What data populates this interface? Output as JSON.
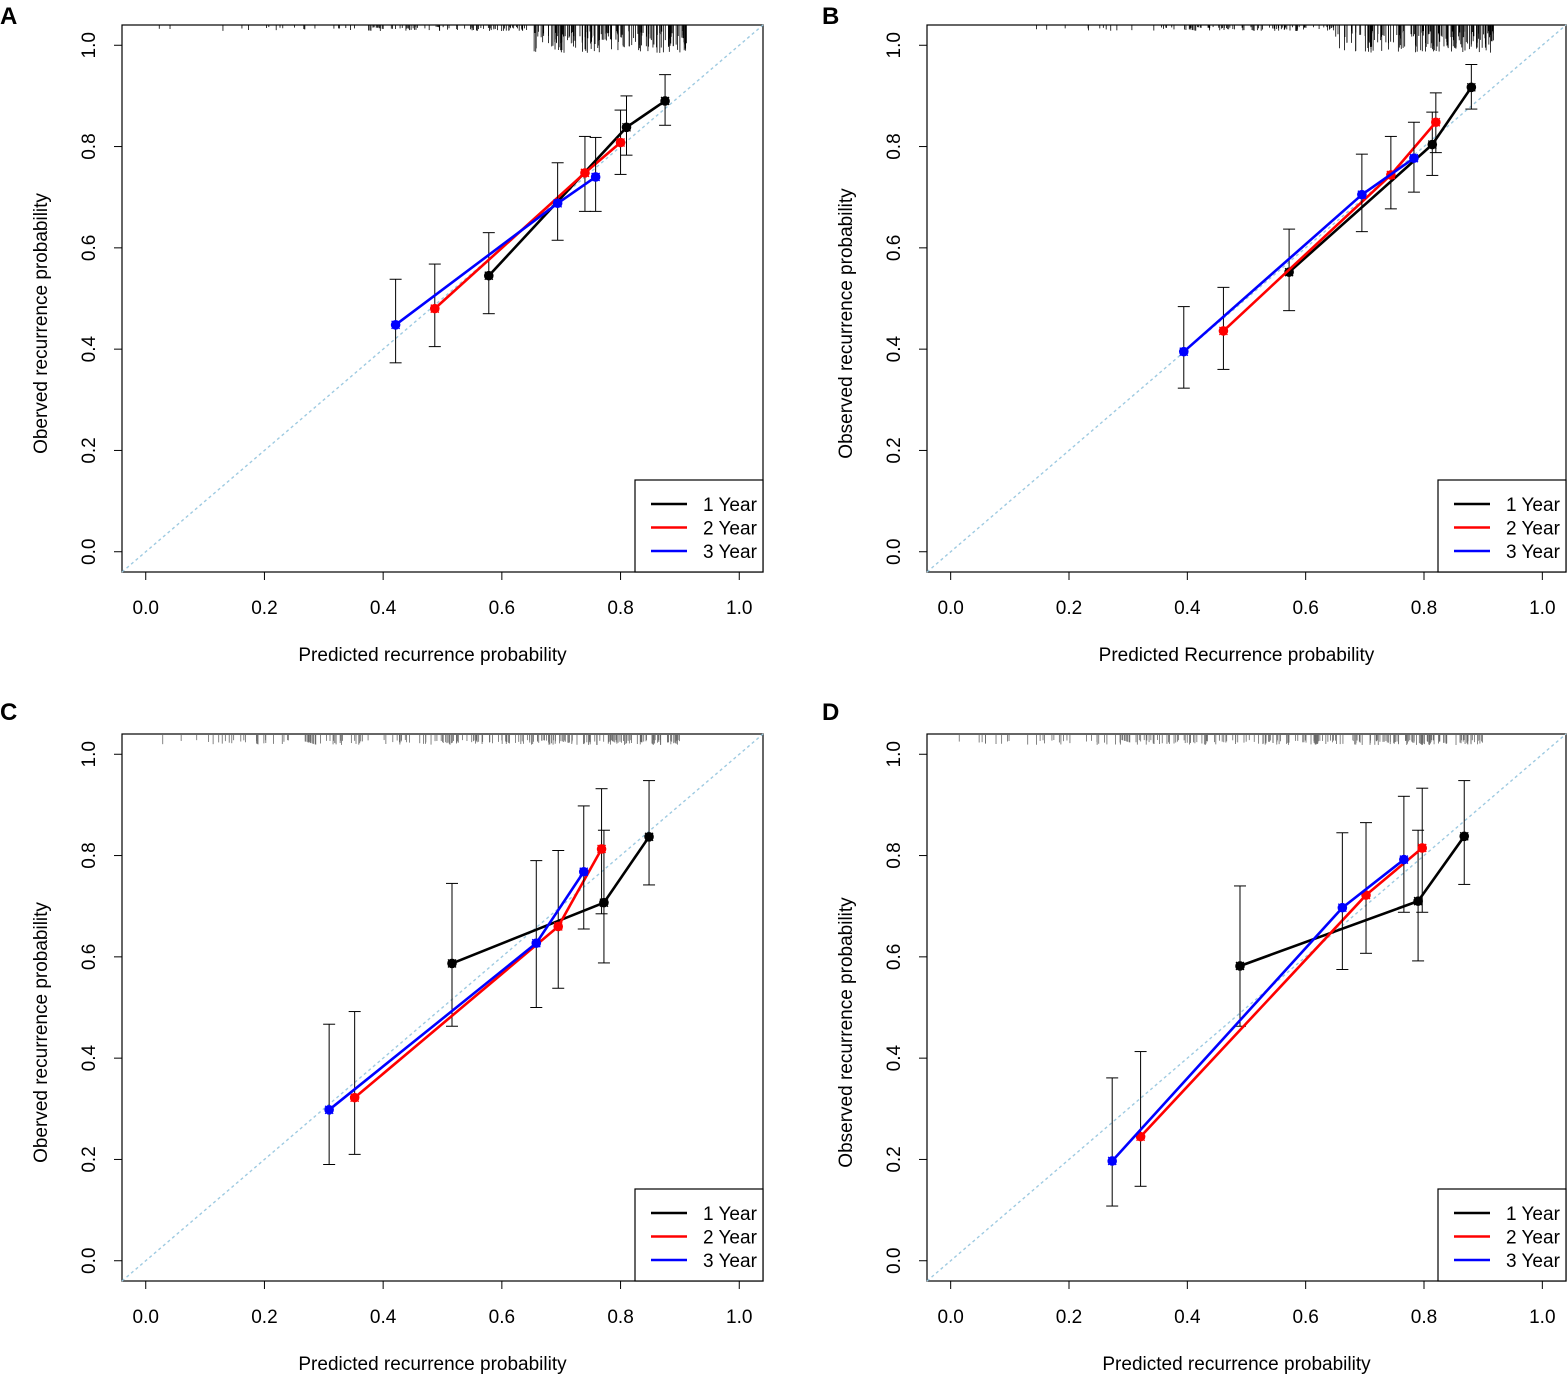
{
  "colors": {
    "1 Year": "#000000",
    "2 Year": "#ff0000",
    "3 Year": "#0000ff",
    "ideal": "#9ecae1",
    "frame": "#000000"
  },
  "chart_data": [
    {
      "panel_label": "A",
      "type": "line",
      "title": "",
      "xlabel": "Predicted recurrence probability",
      "ylabel": "Oberved recurrence probability",
      "xlim": [
        -0.04,
        1.04
      ],
      "ylim": [
        -0.04,
        1.04
      ],
      "xticks": [
        "0.0",
        "0.2",
        "0.4",
        "0.6",
        "0.8",
        "1.0"
      ],
      "yticks": [
        "0.0",
        "0.2",
        "0.4",
        "0.6",
        "0.8",
        "1.0"
      ],
      "ideal_line": [
        [
          0,
          0
        ],
        [
          1,
          1
        ]
      ],
      "legend": {
        "position": "bottom-right",
        "entries": [
          "1 Year",
          "2 Year",
          "3 Year"
        ]
      },
      "rug": "dense",
      "series": [
        {
          "name": "1 Year",
          "points": [
            {
              "x": 0.578,
              "y": 0.545,
              "lo": 0.47,
              "hi": 0.63
            },
            {
              "x": 0.81,
              "y": 0.838,
              "lo": 0.783,
              "hi": 0.9
            },
            {
              "x": 0.875,
              "y": 0.89,
              "lo": 0.842,
              "hi": 0.942
            }
          ]
        },
        {
          "name": "2 Year",
          "points": [
            {
              "x": 0.487,
              "y": 0.48,
              "lo": 0.405,
              "hi": 0.568
            },
            {
              "x": 0.74,
              "y": 0.748,
              "lo": 0.672,
              "hi": 0.82
            },
            {
              "x": 0.8,
              "y": 0.808,
              "lo": 0.745,
              "hi": 0.872
            }
          ]
        },
        {
          "name": "3 Year",
          "points": [
            {
              "x": 0.421,
              "y": 0.448,
              "lo": 0.373,
              "hi": 0.538
            },
            {
              "x": 0.694,
              "y": 0.688,
              "lo": 0.615,
              "hi": 0.768
            },
            {
              "x": 0.758,
              "y": 0.74,
              "lo": 0.672,
              "hi": 0.818
            }
          ]
        }
      ]
    },
    {
      "panel_label": "B",
      "type": "line",
      "title": "",
      "xlabel": "Predicted Recurrence probability",
      "ylabel": "Observed recurrence probability",
      "xlim": [
        -0.04,
        1.04
      ],
      "ylim": [
        -0.04,
        1.04
      ],
      "xticks": [
        "0.0",
        "0.2",
        "0.4",
        "0.6",
        "0.8",
        "1.0"
      ],
      "yticks": [
        "0.0",
        "0.2",
        "0.4",
        "0.6",
        "0.8",
        "1.0"
      ],
      "ideal_line": [
        [
          0,
          0
        ],
        [
          1,
          1
        ]
      ],
      "legend": {
        "position": "bottom-right",
        "entries": [
          "1 Year",
          "2 Year",
          "3 Year"
        ]
      },
      "rug": "dense",
      "series": [
        {
          "name": "1 Year",
          "points": [
            {
              "x": 0.572,
              "y": 0.552,
              "lo": 0.476,
              "hi": 0.637
            },
            {
              "x": 0.814,
              "y": 0.804,
              "lo": 0.743,
              "hi": 0.868
            },
            {
              "x": 0.88,
              "y": 0.917,
              "lo": 0.874,
              "hi": 0.962
            }
          ]
        },
        {
          "name": "2 Year",
          "points": [
            {
              "x": 0.461,
              "y": 0.436,
              "lo": 0.36,
              "hi": 0.522
            },
            {
              "x": 0.744,
              "y": 0.744,
              "lo": 0.677,
              "hi": 0.82
            },
            {
              "x": 0.82,
              "y": 0.848,
              "lo": 0.788,
              "hi": 0.906
            }
          ]
        },
        {
          "name": "3 Year",
          "points": [
            {
              "x": 0.394,
              "y": 0.395,
              "lo": 0.323,
              "hi": 0.484
            },
            {
              "x": 0.695,
              "y": 0.705,
              "lo": 0.632,
              "hi": 0.785
            },
            {
              "x": 0.783,
              "y": 0.777,
              "lo": 0.71,
              "hi": 0.848
            }
          ]
        }
      ]
    },
    {
      "panel_label": "C",
      "type": "line",
      "title": "",
      "xlabel": "Predicted recurrence probability",
      "ylabel": "Oberved recurrence probability",
      "xlim": [
        -0.04,
        1.04
      ],
      "ylim": [
        -0.04,
        1.04
      ],
      "xticks": [
        "0.0",
        "0.2",
        "0.4",
        "0.6",
        "0.8",
        "1.0"
      ],
      "yticks": [
        "0.0",
        "0.2",
        "0.4",
        "0.6",
        "0.8",
        "1.0"
      ],
      "ideal_line": [
        [
          0,
          0
        ],
        [
          1,
          1
        ]
      ],
      "legend": {
        "position": "bottom-right",
        "entries": [
          "1 Year",
          "2 Year",
          "3 Year"
        ]
      },
      "rug": "sparse",
      "series": [
        {
          "name": "1 Year",
          "points": [
            {
              "x": 0.516,
              "y": 0.587,
              "lo": 0.463,
              "hi": 0.745
            },
            {
              "x": 0.772,
              "y": 0.707,
              "lo": 0.588,
              "hi": 0.85
            },
            {
              "x": 0.848,
              "y": 0.837,
              "lo": 0.742,
              "hi": 0.948
            }
          ]
        },
        {
          "name": "2 Year",
          "points": [
            {
              "x": 0.352,
              "y": 0.322,
              "lo": 0.21,
              "hi": 0.492
            },
            {
              "x": 0.695,
              "y": 0.66,
              "lo": 0.538,
              "hi": 0.81
            },
            {
              "x": 0.768,
              "y": 0.813,
              "lo": 0.685,
              "hi": 0.932
            }
          ]
        },
        {
          "name": "3 Year",
          "points": [
            {
              "x": 0.309,
              "y": 0.298,
              "lo": 0.19,
              "hi": 0.467
            },
            {
              "x": 0.658,
              "y": 0.627,
              "lo": 0.5,
              "hi": 0.79
            },
            {
              "x": 0.738,
              "y": 0.768,
              "lo": 0.655,
              "hi": 0.898
            }
          ]
        }
      ]
    },
    {
      "panel_label": "D",
      "type": "line",
      "title": "",
      "xlabel": "Predicted recurrence probability",
      "ylabel": "Observed recurrence probability",
      "xlim": [
        -0.04,
        1.04
      ],
      "ylim": [
        -0.04,
        1.04
      ],
      "xticks": [
        "0.0",
        "0.2",
        "0.4",
        "0.6",
        "0.8",
        "1.0"
      ],
      "yticks": [
        "0.0",
        "0.2",
        "0.4",
        "0.6",
        "0.8",
        "1.0"
      ],
      "ideal_line": [
        [
          0,
          0
        ],
        [
          1,
          1
        ]
      ],
      "legend": {
        "position": "bottom-right",
        "entries": [
          "1 Year",
          "2 Year",
          "3 Year"
        ]
      },
      "rug": "sparse",
      "series": [
        {
          "name": "1 Year",
          "points": [
            {
              "x": 0.489,
              "y": 0.582,
              "lo": 0.463,
              "hi": 0.74
            },
            {
              "x": 0.79,
              "y": 0.71,
              "lo": 0.592,
              "hi": 0.85
            },
            {
              "x": 0.868,
              "y": 0.838,
              "lo": 0.743,
              "hi": 0.948
            }
          ]
        },
        {
          "name": "2 Year",
          "points": [
            {
              "x": 0.321,
              "y": 0.245,
              "lo": 0.147,
              "hi": 0.413
            },
            {
              "x": 0.702,
              "y": 0.722,
              "lo": 0.607,
              "hi": 0.865
            },
            {
              "x": 0.797,
              "y": 0.815,
              "lo": 0.688,
              "hi": 0.933
            }
          ]
        },
        {
          "name": "3 Year",
          "points": [
            {
              "x": 0.273,
              "y": 0.197,
              "lo": 0.108,
              "hi": 0.361
            },
            {
              "x": 0.662,
              "y": 0.697,
              "lo": 0.575,
              "hi": 0.845
            },
            {
              "x": 0.766,
              "y": 0.792,
              "lo": 0.688,
              "hi": 0.917
            }
          ]
        }
      ]
    }
  ]
}
